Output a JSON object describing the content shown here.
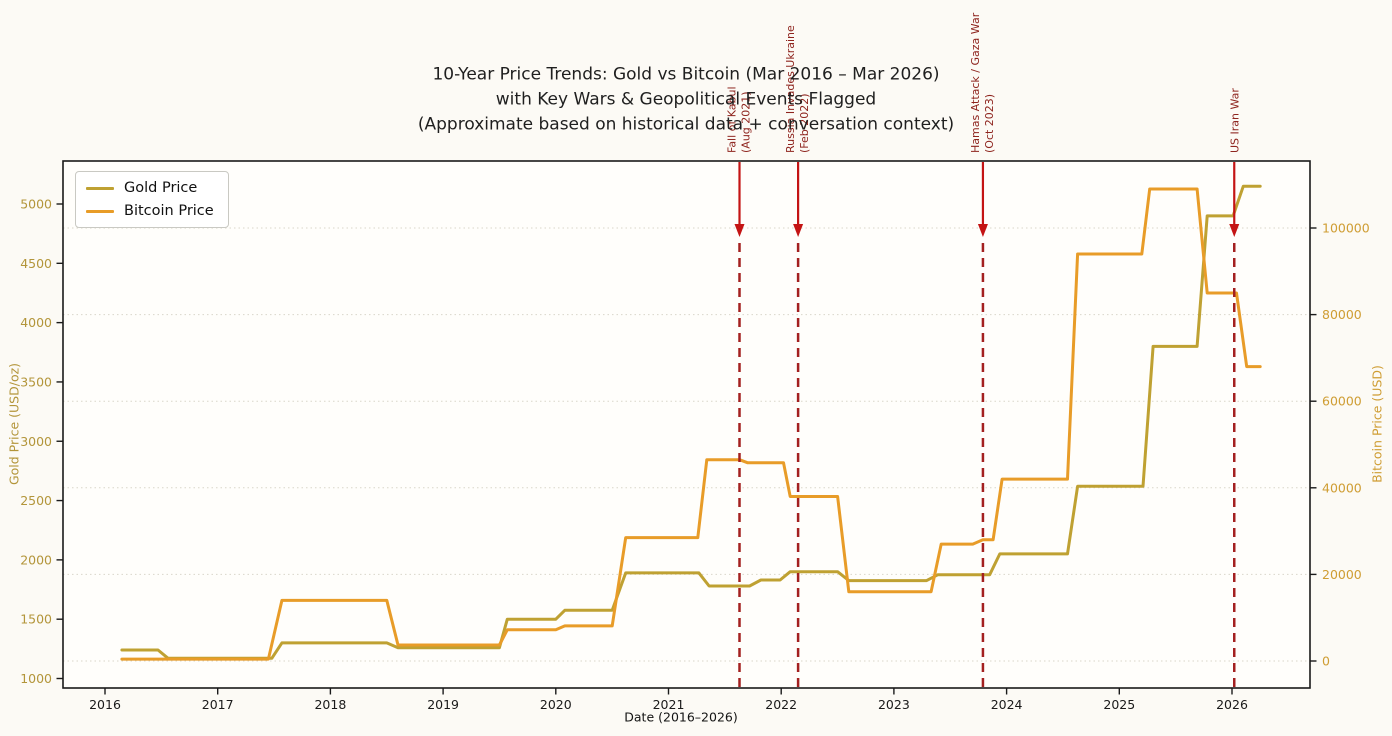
{
  "title": {
    "line1": "10-Year Price Trends: Gold vs Bitcoin (Mar 2016 – Mar 2026)",
    "line2": "with Key Wars & Geopolitical Events Flagged",
    "line3": "(Approximate based on historical data + conversation context)"
  },
  "legend": {
    "items": [
      {
        "label": "Gold Price",
        "color": "#bfa132"
      },
      {
        "label": "Bitcoin Price",
        "color": "#e89c28"
      }
    ]
  },
  "axes": {
    "x": {
      "label": "Date (2016–2026)",
      "tick_color": "#1a1a1a"
    },
    "y_left": {
      "label": "Gold Price (USD/oz)",
      "color": "#b3953a"
    },
    "y_right": {
      "label": "Bitcoin Price (USD)",
      "color": "#cf9d33"
    }
  },
  "chart_data": {
    "type": "line",
    "title": "10-Year Price Trends: Gold vs Bitcoin (Mar 2016 – Mar 2026) with Key Wars & Geopolitical Events Flagged (Approximate based on historical data + conversation context)",
    "xlabel": "Date (2016–2026)",
    "x_ticks": [
      2016,
      2017,
      2018,
      2019,
      2020,
      2021,
      2022,
      2023,
      2024,
      2025,
      2026
    ],
    "x_range": [
      2015.63,
      2026.69
    ],
    "left_axis": {
      "label": "Gold Price (USD/oz)",
      "ticks": [
        1000,
        1500,
        2000,
        2500,
        3000,
        3500,
        4000,
        4500,
        5000
      ]
    },
    "right_axis": {
      "label": "Bitcoin Price (USD)",
      "ticks": [
        0,
        20000,
        40000,
        60000,
        80000,
        100000
      ]
    },
    "grid": "horizontal dotted lines at right-axis tick levels",
    "legend_position": "upper left",
    "series": [
      {
        "name": "Gold Price",
        "axis": "left",
        "color": "#bfa132",
        "unit": "USD/oz",
        "points": [
          [
            2016.15,
            1240
          ],
          [
            2016.47,
            1240
          ],
          [
            2016.56,
            1170
          ],
          [
            2017.48,
            1170
          ],
          [
            2017.57,
            1300
          ],
          [
            2018.5,
            1300
          ],
          [
            2018.6,
            1260
          ],
          [
            2019.5,
            1260
          ],
          [
            2019.57,
            1500
          ],
          [
            2020.0,
            1500
          ],
          [
            2020.08,
            1575
          ],
          [
            2020.5,
            1575
          ],
          [
            2020.62,
            1890
          ],
          [
            2021.27,
            1890
          ],
          [
            2021.36,
            1780
          ],
          [
            2021.72,
            1780
          ],
          [
            2021.82,
            1830
          ],
          [
            2021.99,
            1830
          ],
          [
            2022.08,
            1900
          ],
          [
            2022.5,
            1900
          ],
          [
            2022.6,
            1825
          ],
          [
            2023.29,
            1825
          ],
          [
            2023.39,
            1875
          ],
          [
            2023.85,
            1875
          ],
          [
            2023.94,
            2050
          ],
          [
            2024.54,
            2050
          ],
          [
            2024.63,
            2620
          ],
          [
            2025.21,
            2620
          ],
          [
            2025.3,
            3800
          ],
          [
            2025.69,
            3800
          ],
          [
            2025.78,
            4900
          ],
          [
            2026.01,
            4900
          ],
          [
            2026.1,
            5150
          ],
          [
            2026.25,
            5150
          ]
        ]
      },
      {
        "name": "Bitcoin Price",
        "axis": "right",
        "color": "#e89c28",
        "unit": "USD",
        "points": [
          [
            2016.15,
            430
          ],
          [
            2017.45,
            430
          ],
          [
            2017.57,
            14000
          ],
          [
            2018.5,
            14000
          ],
          [
            2018.6,
            3700
          ],
          [
            2019.5,
            3700
          ],
          [
            2019.57,
            7200
          ],
          [
            2020.0,
            7200
          ],
          [
            2020.08,
            8100
          ],
          [
            2020.5,
            8100
          ],
          [
            2020.62,
            28500
          ],
          [
            2021.26,
            28500
          ],
          [
            2021.34,
            46500
          ],
          [
            2021.63,
            46500
          ],
          [
            2021.7,
            45800
          ],
          [
            2022.02,
            45800
          ],
          [
            2022.08,
            38000
          ],
          [
            2022.5,
            38000
          ],
          [
            2022.6,
            16000
          ],
          [
            2023.33,
            16000
          ],
          [
            2023.42,
            27000
          ],
          [
            2023.7,
            27000
          ],
          [
            2023.79,
            28000
          ],
          [
            2023.88,
            28000
          ],
          [
            2023.96,
            42000
          ],
          [
            2024.54,
            42000
          ],
          [
            2024.63,
            94000
          ],
          [
            2025.2,
            94000
          ],
          [
            2025.27,
            109000
          ],
          [
            2025.69,
            109000
          ],
          [
            2025.78,
            85000
          ],
          [
            2026.04,
            85000
          ],
          [
            2026.13,
            68000
          ],
          [
            2026.25,
            68000
          ]
        ]
      }
    ],
    "events": [
      {
        "name": "Fall of Kabul",
        "date": "(Aug 2021)",
        "x": 2021.63
      },
      {
        "name": "Russia Invades Ukraine",
        "date": "(Feb 2022)",
        "x": 2022.15
      },
      {
        "name": "Hamas Attack / Gaza War",
        "date": "(Oct 2023)",
        "x": 2023.79
      },
      {
        "name": "US Iran War",
        "date": "",
        "x": 2026.02
      }
    ],
    "event_style": {
      "dash_color": "#a32020",
      "arrow_color": "#c41414",
      "text_color": "#8e241e"
    }
  }
}
